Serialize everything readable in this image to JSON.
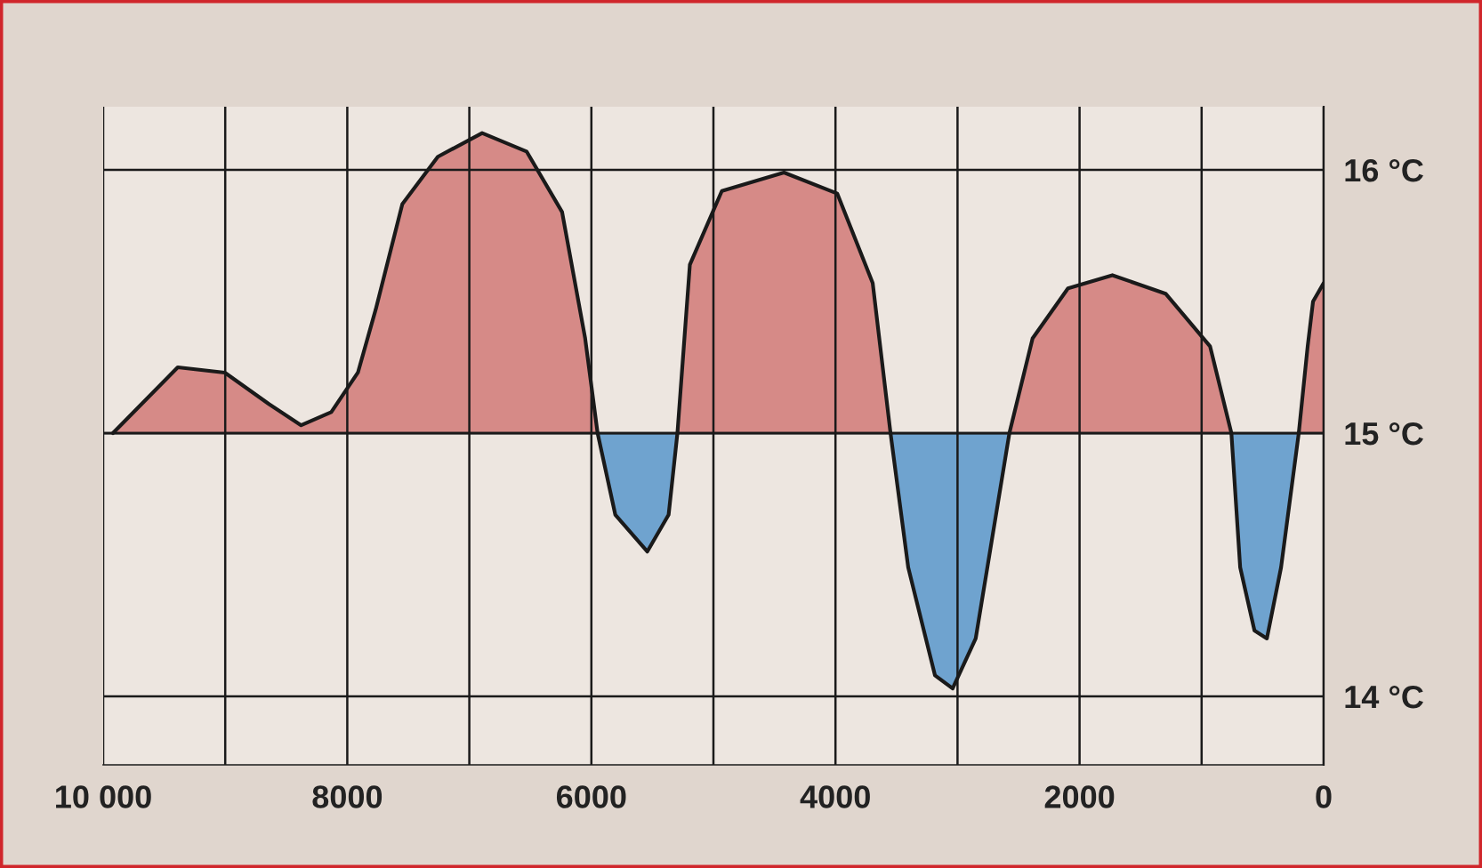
{
  "chart_data": {
    "type": "area",
    "series": [
      {
        "color": "#d68a87",
        "x": [
          9920,
          9389,
          9004,
          8640,
          8378,
          8131,
          7913,
          7767,
          7549,
          7258,
          6895,
          6531,
          6240,
          6051,
          5949
        ],
        "values": [
          15.0,
          15.25,
          15.23,
          15.11,
          15.03,
          15.08,
          15.23,
          15.47,
          15.87,
          16.05,
          16.14,
          16.07,
          15.84,
          15.36,
          15.0
        ]
      },
      {
        "color": "#6fa3cf",
        "x": [
          5949,
          5804,
          5542,
          5367,
          5295
        ],
        "values": [
          15.0,
          14.69,
          14.55,
          14.69,
          15.0
        ]
      },
      {
        "color": "#d68a87",
        "x": [
          5295,
          5193,
          4931,
          4422,
          3985,
          3695,
          3549
        ],
        "values": [
          15.0,
          15.64,
          15.92,
          15.99,
          15.91,
          15.57,
          15.0
        ]
      },
      {
        "color": "#6fa3cf",
        "x": [
          3549,
          3404,
          3185,
          3040,
          2851,
          2575
        ],
        "values": [
          15.0,
          14.49,
          14.08,
          14.03,
          14.22,
          15.0
        ]
      },
      {
        "color": "#d68a87",
        "x": [
          2575,
          2385,
          2095,
          1731,
          1295,
          931,
          756
        ],
        "values": [
          15.0,
          15.36,
          15.55,
          15.6,
          15.53,
          15.33,
          15.0
        ]
      },
      {
        "color": "#6fa3cf",
        "x": [
          756,
          684,
          567,
          465,
          349,
          204
        ],
        "values": [
          15.0,
          14.49,
          14.25,
          14.22,
          14.49,
          15.0
        ]
      },
      {
        "color": "#d68a87",
        "x": [
          204,
          131,
          87,
          0
        ],
        "values": [
          15.0,
          15.33,
          15.5,
          15.57
        ]
      }
    ],
    "ref_lines": [
      {
        "axis": "y",
        "value": 15,
        "color": "#1a1a1a"
      }
    ],
    "xlim": [
      10000,
      0
    ],
    "xticks": [
      {
        "value": 10000,
        "label": "10 000"
      },
      {
        "value": 9000,
        "label": null
      },
      8000,
      {
        "value": 7000,
        "label": null
      },
      6000,
      {
        "value": 5000,
        "label": null
      },
      4000,
      {
        "value": 3000,
        "label": null
      },
      2000,
      {
        "value": 1000,
        "label": null
      },
      0
    ],
    "ylim": [
      13.74,
      16.24
    ],
    "yticks": [
      {
        "value": 14,
        "label": "14 °C"
      },
      {
        "value": 15,
        "label": "15 °C"
      },
      {
        "value": 16,
        "label": "16 °C"
      }
    ],
    "grid": true
  }
}
